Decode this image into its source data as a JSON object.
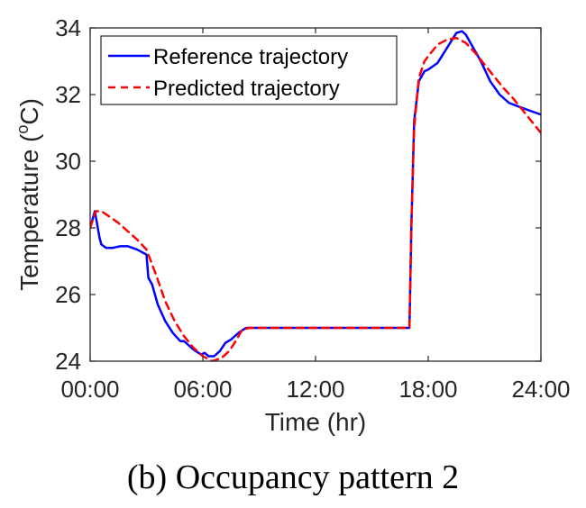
{
  "caption": "(b) Occupancy pattern 2",
  "colors": {
    "reference": "#0000ff",
    "predicted": "#ff0000",
    "axis": "#262626"
  },
  "chart_data": {
    "type": "line",
    "xlabel": "Time (hr)",
    "ylabel_main": "Temperature (",
    "ylabel_sup": "o",
    "ylabel_tail": "C)",
    "xlim": [
      0,
      24
    ],
    "ylim": [
      24,
      34
    ],
    "xticks": [
      0,
      6,
      12,
      18,
      24
    ],
    "xtick_labels": [
      "00:00",
      "06:00",
      "12:00",
      "18:00",
      "24:00"
    ],
    "yticks": [
      24,
      26,
      28,
      30,
      32,
      34
    ],
    "ytick_labels": [
      "24",
      "26",
      "28",
      "30",
      "32",
      "34"
    ],
    "grid": false,
    "legend_position": "top-left",
    "series": [
      {
        "name": "Reference trajectory",
        "style": "solid",
        "x": [
          0,
          0.25,
          0.5,
          0.6,
          0.85,
          1.2,
          1.6,
          2.0,
          2.5,
          3.0,
          3.1,
          3.3,
          3.6,
          4.0,
          4.4,
          4.8,
          5.0,
          5.5,
          5.9,
          6.1,
          6.3,
          6.6,
          6.9,
          7.2,
          7.5,
          7.9,
          8.3,
          9.0,
          10.0,
          12.0,
          14.0,
          16.0,
          17.0,
          17.1,
          17.25,
          17.5,
          17.8,
          18.0,
          18.5,
          19.0,
          19.5,
          19.8,
          20.0,
          20.3,
          20.8,
          21.3,
          21.8,
          22.3,
          23.0,
          23.5,
          24.0
        ],
        "y": [
          28.0,
          28.5,
          27.7,
          27.5,
          27.4,
          27.4,
          27.45,
          27.45,
          27.35,
          27.2,
          26.5,
          26.3,
          25.7,
          25.2,
          24.85,
          24.6,
          24.6,
          24.35,
          24.2,
          24.25,
          24.15,
          24.15,
          24.3,
          24.55,
          24.65,
          24.85,
          25.0,
          25.0,
          25.0,
          25.0,
          25.0,
          25.0,
          25.0,
          28.0,
          31.2,
          32.4,
          32.7,
          32.75,
          32.95,
          33.4,
          33.85,
          33.9,
          33.8,
          33.5,
          33.0,
          32.4,
          32.0,
          31.75,
          31.6,
          31.5,
          31.4
        ]
      },
      {
        "name": "Predicted trajectory",
        "style": "dashed",
        "x": [
          0,
          0.3,
          0.6,
          1.0,
          1.5,
          2.0,
          2.5,
          3.0,
          3.5,
          4.0,
          4.5,
          5.0,
          5.5,
          6.0,
          6.5,
          7.0,
          7.4,
          7.8,
          8.1,
          8.5,
          9.0,
          10.0,
          12.0,
          14.0,
          16.0,
          17.0,
          17.1,
          17.25,
          17.5,
          17.8,
          18.0,
          18.5,
          19.0,
          19.5,
          20.0,
          20.5,
          21.0,
          21.5,
          22.0,
          22.5,
          23.0,
          23.5,
          24.0
        ],
        "y": [
          28.0,
          28.5,
          28.5,
          28.35,
          28.15,
          27.9,
          27.65,
          27.35,
          26.6,
          25.8,
          25.2,
          24.75,
          24.4,
          24.15,
          24.0,
          24.1,
          24.3,
          24.65,
          24.95,
          25.0,
          25.0,
          25.0,
          25.0,
          25.0,
          25.0,
          25.0,
          28.0,
          31.0,
          32.5,
          33.0,
          33.15,
          33.5,
          33.65,
          33.7,
          33.55,
          33.25,
          32.9,
          32.55,
          32.2,
          31.9,
          31.55,
          31.2,
          30.85
        ]
      }
    ]
  }
}
